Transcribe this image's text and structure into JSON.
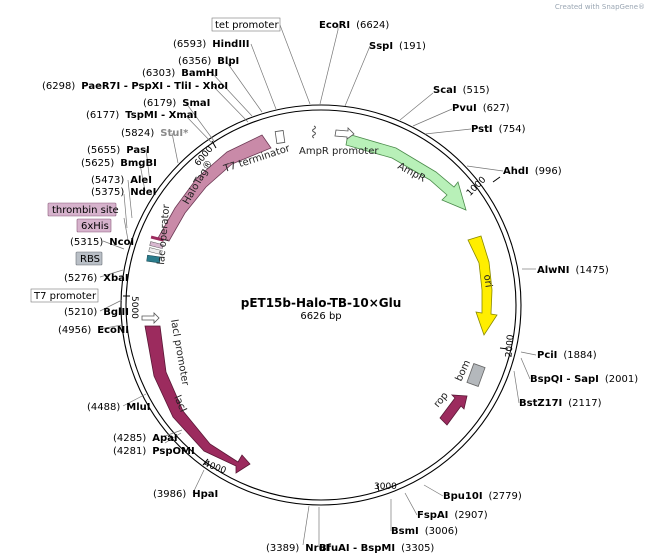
{
  "plasmid": {
    "name": "pET15b-Halo-TB-10×Glu",
    "length_label": "6626 bp",
    "length": 6626
  },
  "watermark": "Created with SnapGene®",
  "backbone_ticks": [
    "1000",
    "2000",
    "3000",
    "4000",
    "5000",
    "6000"
  ],
  "colors": {
    "halotag": "#c98aa8",
    "ampr": "#b8f0b8",
    "ori": "#ffee00",
    "laci": "#9c2b5e",
    "rop": "#9c2b5e",
    "bom": "#b4b8bc",
    "rbs": "#2a7c8c"
  },
  "features": [
    {
      "name": "HaloTag®"
    },
    {
      "name": "AmpR"
    },
    {
      "name": "ori"
    },
    {
      "name": "lacI"
    },
    {
      "name": "rop"
    },
    {
      "name": "bom"
    }
  ],
  "feature_labels": {
    "t7_terminator": "T7 terminator",
    "ampr_promoter": "AmpR promoter",
    "laci_promoter": "lacI promoter",
    "lac_operator": "lac operator",
    "thrombin_site": "thrombin site",
    "his_tag": "6xHis",
    "rbs": "RBS",
    "t7_promoter": "T7 promoter",
    "tet_promoter": "tet promoter"
  },
  "enzymes": [
    {
      "name": "EcoRI",
      "pos": "(6624)"
    },
    {
      "name": "SspI",
      "pos": "(191)"
    },
    {
      "name": "ScaI",
      "pos": "(515)"
    },
    {
      "name": "PvuI",
      "pos": "(627)"
    },
    {
      "name": "PstI",
      "pos": "(754)"
    },
    {
      "name": "AhdI",
      "pos": "(996)"
    },
    {
      "name": "AlwNI",
      "pos": "(1475)"
    },
    {
      "name": "PciI",
      "pos": "(1884)"
    },
    {
      "name": "BspQI - SapI",
      "pos": "(2001)"
    },
    {
      "name": "BstZ17I",
      "pos": "(2117)"
    },
    {
      "name": "Bpu10I",
      "pos": "(2779)"
    },
    {
      "name": "FspAI",
      "pos": "(2907)"
    },
    {
      "name": "BsmI",
      "pos": "(3006)"
    },
    {
      "name": "BfuAI - BspMI",
      "pos": "(3305)"
    },
    {
      "name": "NruI",
      "pos": "(3389)"
    },
    {
      "name": "HpaI",
      "pos": "(3986)"
    },
    {
      "name": "PspOMI",
      "pos": "(4281)"
    },
    {
      "name": "ApaI",
      "pos": "(4285)"
    },
    {
      "name": "MluI",
      "pos": "(4488)"
    },
    {
      "name": "EcoNI",
      "pos": "(4956)"
    },
    {
      "name": "BglII",
      "pos": "(5210)"
    },
    {
      "name": "XbaI",
      "pos": "(5276)"
    },
    {
      "name": "NcoI",
      "pos": "(5315)"
    },
    {
      "name": "NdeI",
      "pos": "(5375)"
    },
    {
      "name": "AleI",
      "pos": "(5473)"
    },
    {
      "name": "BmgBI",
      "pos": "(5625)"
    },
    {
      "name": "PasI",
      "pos": "(5655)"
    },
    {
      "name": "StuI*",
      "pos": "(5824)"
    },
    {
      "name": "TspMI - XmaI",
      "pos": "(6177)"
    },
    {
      "name": "SmaI",
      "pos": "(6179)"
    },
    {
      "name": "PaeR7I - PspXI - TliI - XhoI",
      "pos": "(6298)"
    },
    {
      "name": "BamHI",
      "pos": "(6303)"
    },
    {
      "name": "BlpI",
      "pos": "(6356)"
    },
    {
      "name": "HindIII",
      "pos": "(6593)"
    }
  ]
}
